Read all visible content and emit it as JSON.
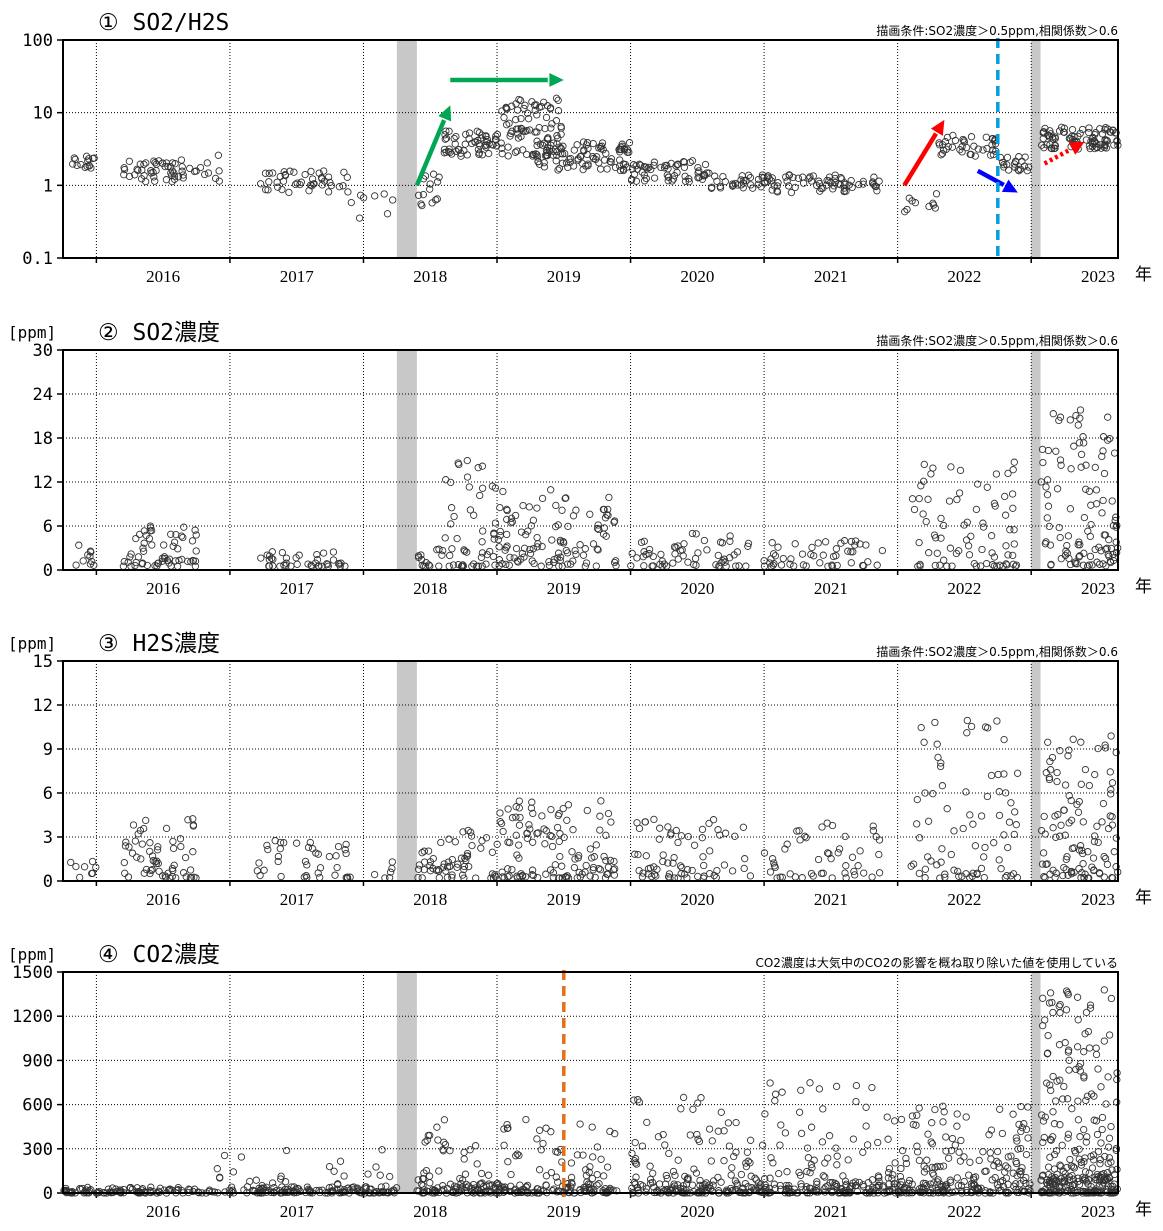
{
  "year_unit": "年",
  "chart_data": [
    {
      "type": "scatter",
      "title": "① SO2/H2S",
      "note": "描画条件:SO2濃度＞0.5ppm,相関係数＞0.6",
      "ylabel": "",
      "yscale": "log",
      "ylim": [
        0.1,
        100
      ],
      "yticks": [
        "100",
        "10",
        "1",
        "0.1"
      ],
      "xlim": [
        2015.75,
        2023.65
      ],
      "xticks": [
        "2016",
        "2017",
        "2018",
        "2019",
        "2020",
        "2021",
        "2022",
        "2023"
      ],
      "grid": true,
      "gray_bands": [
        [
          2018.25,
          2018.4
        ],
        [
          2023.0,
          2023.07
        ]
      ],
      "clusters": [
        {
          "x": [
            2015.8,
            2016.0
          ],
          "ylog": [
            0.2,
            0.4
          ],
          "n": 15
        },
        {
          "x": [
            2016.2,
            2016.75
          ],
          "ylog": [
            0.05,
            0.35
          ],
          "n": 50
        },
        {
          "x": [
            2016.75,
            2017.0
          ],
          "ylog": [
            0.0,
            0.45
          ],
          "n": 8
        },
        {
          "x": [
            2017.2,
            2017.9
          ],
          "ylog": [
            -0.1,
            0.2
          ],
          "n": 45
        },
        {
          "x": [
            2017.9,
            2018.25
          ],
          "ylog": [
            -0.5,
            -0.1
          ],
          "n": 8
        },
        {
          "x": [
            2018.4,
            2018.6
          ],
          "ylog": [
            -0.3,
            0.2
          ],
          "n": 14
        },
        {
          "x": [
            2018.6,
            2019.0
          ],
          "ylog": [
            0.4,
            0.75
          ],
          "n": 55
        },
        {
          "x": [
            2019.0,
            2019.5
          ],
          "ylog": [
            0.4,
            1.2
          ],
          "n": 90
        },
        {
          "x": [
            2019.3,
            2020.0
          ],
          "ylog": [
            0.2,
            0.6
          ],
          "n": 90
        },
        {
          "x": [
            2020.0,
            2020.6
          ],
          "ylog": [
            0.05,
            0.35
          ],
          "n": 60
        },
        {
          "x": [
            2020.6,
            2021.0
          ],
          "ylog": [
            -0.05,
            0.15
          ],
          "n": 30
        },
        {
          "x": [
            2021.0,
            2021.9
          ],
          "ylog": [
            -0.1,
            0.15
          ],
          "n": 70
        },
        {
          "x": [
            2022.0,
            2022.3
          ],
          "ylog": [
            -0.4,
            -0.1
          ],
          "n": 10
        },
        {
          "x": [
            2022.3,
            2022.75
          ],
          "ylog": [
            0.4,
            0.7
          ],
          "n": 40
        },
        {
          "x": [
            2022.75,
            2023.0
          ],
          "ylog": [
            0.2,
            0.4
          ],
          "n": 20
        },
        {
          "x": [
            2023.07,
            2023.65
          ],
          "ylog": [
            0.5,
            0.8
          ],
          "n": 90
        }
      ],
      "annotations": [
        {
          "kind": "arrow",
          "color": "#00a651",
          "from": [
            2018.4,
            0.0
          ],
          "to": [
            2018.65,
            1.1
          ]
        },
        {
          "kind": "arrow",
          "color": "#00a651",
          "from": [
            2018.65,
            1.45
          ],
          "to": [
            2019.5,
            1.45
          ]
        },
        {
          "kind": "arrow",
          "color": "#ff0000",
          "from": [
            2022.05,
            0.0
          ],
          "to": [
            2022.35,
            0.9
          ]
        },
        {
          "kind": "arrow",
          "color": "#0000ff",
          "from": [
            2022.6,
            0.2
          ],
          "to": [
            2022.9,
            -0.1
          ]
        },
        {
          "kind": "dotted-arrow",
          "color": "#ff0000",
          "from": [
            2023.1,
            0.3
          ],
          "to": [
            2023.4,
            0.6
          ]
        },
        {
          "kind": "vline",
          "color": "#00a0e0",
          "x": 2022.75
        }
      ]
    },
    {
      "type": "scatter",
      "title": "② SO2濃度",
      "note": "描画条件:SO2濃度＞0.5ppm,相関係数＞0.6",
      "ylabel": "[ppm]",
      "yscale": "linear",
      "ylim": [
        0,
        30
      ],
      "yticks": [
        "30",
        "24",
        "18",
        "12",
        "6",
        "0"
      ],
      "xlim": [
        2015.75,
        2023.65
      ],
      "xticks": [
        "2016",
        "2017",
        "2018",
        "2019",
        "2020",
        "2021",
        "2022",
        "2023"
      ],
      "grid": true,
      "gray_bands": [
        [
          2018.25,
          2018.4
        ],
        [
          2023.0,
          2023.07
        ]
      ],
      "clusters": [
        {
          "x": [
            2015.8,
            2016.0
          ],
          "y": [
            0.5,
            4
          ],
          "n": 10
        },
        {
          "x": [
            2016.2,
            2016.75
          ],
          "y": [
            0.5,
            7
          ],
          "n": 60
        },
        {
          "x": [
            2017.2,
            2017.9
          ],
          "y": [
            0.5,
            2.5
          ],
          "n": 40
        },
        {
          "x": [
            2018.4,
            2018.6
          ],
          "y": [
            0.5,
            3
          ],
          "n": 15
        },
        {
          "x": [
            2018.6,
            2019.0
          ],
          "y": [
            0.5,
            16
          ],
          "n": 50
        },
        {
          "x": [
            2019.0,
            2019.9
          ],
          "y": [
            0.5,
            11
          ],
          "n": 110
        },
        {
          "x": [
            2020.0,
            2020.9
          ],
          "y": [
            0.5,
            5
          ],
          "n": 60
        },
        {
          "x": [
            2021.0,
            2021.9
          ],
          "y": [
            0.5,
            4
          ],
          "n": 50
        },
        {
          "x": [
            2022.1,
            2022.9
          ],
          "y": [
            0.5,
            15
          ],
          "n": 80
        },
        {
          "x": [
            2023.07,
            2023.65
          ],
          "y": [
            0.5,
            22
          ],
          "n": 110
        }
      ],
      "annotations": []
    },
    {
      "type": "scatter",
      "title": "③ H2S濃度",
      "note": "描画条件:SO2濃度＞0.5ppm,相関係数＞0.6",
      "ylabel": "[ppm]",
      "yscale": "linear",
      "ylim": [
        0,
        15
      ],
      "yticks": [
        "15",
        "12",
        "9",
        "6",
        "3",
        "0"
      ],
      "xlim": [
        2015.75,
        2023.65
      ],
      "xticks": [
        "2016",
        "2017",
        "2018",
        "2019",
        "2020",
        "2021",
        "2022",
        "2023"
      ],
      "grid": true,
      "gray_bands": [
        [
          2018.25,
          2018.4
        ],
        [
          2023.0,
          2023.07
        ]
      ],
      "clusters": [
        {
          "x": [
            2015.8,
            2016.0
          ],
          "y": [
            0.2,
            1.5
          ],
          "n": 8
        },
        {
          "x": [
            2016.2,
            2016.75
          ],
          "y": [
            0.2,
            4.5
          ],
          "n": 60
        },
        {
          "x": [
            2017.2,
            2017.9
          ],
          "y": [
            0.2,
            2.8
          ],
          "n": 40
        },
        {
          "x": [
            2018.0,
            2018.25
          ],
          "y": [
            0.2,
            1.8
          ],
          "n": 6
        },
        {
          "x": [
            2018.4,
            2019.0
          ],
          "y": [
            0.2,
            3.5
          ],
          "n": 60
        },
        {
          "x": [
            2019.0,
            2019.9
          ],
          "y": [
            0.2,
            5.5
          ],
          "n": 120
        },
        {
          "x": [
            2020.0,
            2020.9
          ],
          "y": [
            0.2,
            4.5
          ],
          "n": 70
        },
        {
          "x": [
            2021.0,
            2021.9
          ],
          "y": [
            0.2,
            4
          ],
          "n": 50
        },
        {
          "x": [
            2022.1,
            2022.9
          ],
          "y": [
            0.2,
            11
          ],
          "n": 80
        },
        {
          "x": [
            2023.07,
            2023.65
          ],
          "y": [
            0.2,
            10
          ],
          "n": 110
        }
      ],
      "annotations": []
    },
    {
      "type": "scatter",
      "title": "④ CO2濃度",
      "note": "CO2濃度は大気中のCO2の影響を概ね取り除いた値を使用している",
      "ylabel": "[ppm]",
      "yscale": "linear",
      "ylim": [
        0,
        1500
      ],
      "yticks": [
        "1500",
        "1200",
        "900",
        "600",
        "300",
        "0"
      ],
      "xlim": [
        2015.75,
        2023.65
      ],
      "xticks": [
        "2016",
        "2017",
        "2018",
        "2019",
        "2020",
        "2021",
        "2022",
        "2023"
      ],
      "grid": true,
      "gray_bands": [
        [
          2018.25,
          2018.4
        ],
        [
          2023.0,
          2023.07
        ]
      ],
      "clusters": [
        {
          "x": [
            2015.75,
            2018.25
          ],
          "y": [
            0,
            40
          ],
          "n": 220
        },
        {
          "x": [
            2016.9,
            2018.2
          ],
          "y": [
            40,
            300
          ],
          "n": 35
        },
        {
          "x": [
            2018.4,
            2019.9
          ],
          "y": [
            0,
            60
          ],
          "n": 160
        },
        {
          "x": [
            2018.4,
            2019.9
          ],
          "y": [
            60,
            500
          ],
          "n": 90
        },
        {
          "x": [
            2020.0,
            2021.0
          ],
          "y": [
            0,
            60
          ],
          "n": 100
        },
        {
          "x": [
            2020.0,
            2021.0
          ],
          "y": [
            60,
            650
          ],
          "n": 80
        },
        {
          "x": [
            2021.0,
            2022.0
          ],
          "y": [
            0,
            60
          ],
          "n": 100
        },
        {
          "x": [
            2021.0,
            2022.0
          ],
          "y": [
            60,
            750
          ],
          "n": 80
        },
        {
          "x": [
            2022.0,
            2023.0
          ],
          "y": [
            0,
            60
          ],
          "n": 100
        },
        {
          "x": [
            2022.0,
            2023.0
          ],
          "y": [
            60,
            600
          ],
          "n": 120
        },
        {
          "x": [
            2023.07,
            2023.65
          ],
          "y": [
            0,
            100
          ],
          "n": 120
        },
        {
          "x": [
            2023.07,
            2023.65
          ],
          "y": [
            100,
            1400
          ],
          "n": 160
        }
      ],
      "annotations": [
        {
          "kind": "vline",
          "color": "#e07020",
          "x": 2019.5
        }
      ]
    }
  ]
}
